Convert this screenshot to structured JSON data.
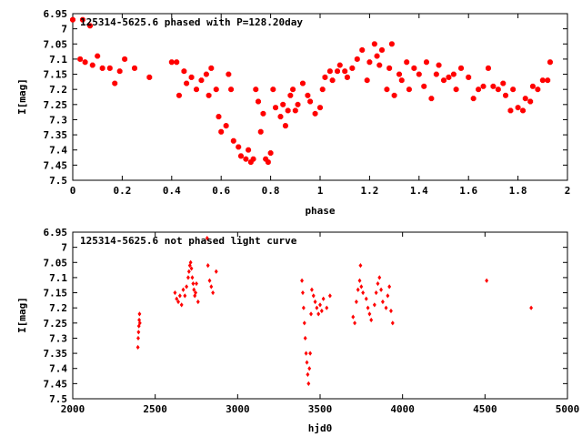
{
  "chart_data": [
    {
      "type": "scatter",
      "title": "125314-5625.6 phased with P=128.20day",
      "xlabel": "phase",
      "ylabel": "I[mag]",
      "xlim": [
        0,
        2
      ],
      "ylim": [
        6.95,
        7.5
      ],
      "y_inverted": true,
      "xticks": [
        0,
        0.2,
        0.4,
        0.6,
        0.8,
        1,
        1.2,
        1.4,
        1.6,
        1.8,
        2
      ],
      "xtick_labels": [
        "0",
        "0.2",
        "0.4",
        "0.6",
        "0.8",
        "1",
        "1.2",
        "1.4",
        "1.6",
        "1.8",
        "2"
      ],
      "yticks": [
        6.95,
        7,
        7.05,
        7.1,
        7.15,
        7.2,
        7.25,
        7.3,
        7.35,
        7.4,
        7.45,
        7.5
      ],
      "ytick_labels": [
        "6.95",
        "7",
        "7.05",
        "7.1",
        "7.15",
        "7.2",
        "7.25",
        "7.3",
        "7.35",
        "7.4",
        "7.45",
        "7.5"
      ],
      "marker_color": "#ff0000",
      "points": [
        [
          0.0,
          6.97
        ],
        [
          0.04,
          6.97
        ],
        [
          0.07,
          6.99
        ],
        [
          0.03,
          7.1
        ],
        [
          0.05,
          7.11
        ],
        [
          0.08,
          7.12
        ],
        [
          0.1,
          7.09
        ],
        [
          0.12,
          7.13
        ],
        [
          0.15,
          7.13
        ],
        [
          0.17,
          7.18
        ],
        [
          0.19,
          7.14
        ],
        [
          0.21,
          7.1
        ],
        [
          0.25,
          7.13
        ],
        [
          0.31,
          7.16
        ],
        [
          0.4,
          7.11
        ],
        [
          0.42,
          7.11
        ],
        [
          0.43,
          7.22
        ],
        [
          0.45,
          7.14
        ],
        [
          0.46,
          7.18
        ],
        [
          0.48,
          7.16
        ],
        [
          0.5,
          7.2
        ],
        [
          0.52,
          7.17
        ],
        [
          0.54,
          7.15
        ],
        [
          0.55,
          7.22
        ],
        [
          0.56,
          7.13
        ],
        [
          0.58,
          7.2
        ],
        [
          0.59,
          7.29
        ],
        [
          0.6,
          7.34
        ],
        [
          0.62,
          7.32
        ],
        [
          0.63,
          7.15
        ],
        [
          0.64,
          7.2
        ],
        [
          0.65,
          7.37
        ],
        [
          0.67,
          7.39
        ],
        [
          0.68,
          7.42
        ],
        [
          0.7,
          7.43
        ],
        [
          0.71,
          7.4
        ],
        [
          0.72,
          7.44
        ],
        [
          0.73,
          7.43
        ],
        [
          0.74,
          7.2
        ],
        [
          0.75,
          7.24
        ],
        [
          0.76,
          7.34
        ],
        [
          0.77,
          7.28
        ],
        [
          0.78,
          7.43
        ],
        [
          0.79,
          7.44
        ],
        [
          0.8,
          7.41
        ],
        [
          0.81,
          7.2
        ],
        [
          0.82,
          7.26
        ],
        [
          0.84,
          7.29
        ],
        [
          0.85,
          7.25
        ],
        [
          0.86,
          7.32
        ],
        [
          0.87,
          7.27
        ],
        [
          0.88,
          7.22
        ],
        [
          0.89,
          7.2
        ],
        [
          0.9,
          7.27
        ],
        [
          0.91,
          7.25
        ],
        [
          0.93,
          7.18
        ],
        [
          0.95,
          7.22
        ],
        [
          0.96,
          7.24
        ],
        [
          0.98,
          7.28
        ],
        [
          1.0,
          7.26
        ],
        [
          1.01,
          7.2
        ],
        [
          1.02,
          7.16
        ],
        [
          1.04,
          7.14
        ],
        [
          1.05,
          7.17
        ],
        [
          1.07,
          7.14
        ],
        [
          1.08,
          7.12
        ],
        [
          1.1,
          7.14
        ],
        [
          1.11,
          7.16
        ],
        [
          1.13,
          7.13
        ],
        [
          1.15,
          7.1
        ],
        [
          1.17,
          7.07
        ],
        [
          1.19,
          7.17
        ],
        [
          1.2,
          7.11
        ],
        [
          1.22,
          7.05
        ],
        [
          1.23,
          7.09
        ],
        [
          1.24,
          7.12
        ],
        [
          1.25,
          7.07
        ],
        [
          1.27,
          7.2
        ],
        [
          1.28,
          7.13
        ],
        [
          1.29,
          7.05
        ],
        [
          1.3,
          7.22
        ],
        [
          1.32,
          7.15
        ],
        [
          1.33,
          7.17
        ],
        [
          1.35,
          7.11
        ],
        [
          1.36,
          7.2
        ],
        [
          1.38,
          7.13
        ],
        [
          1.4,
          7.15
        ],
        [
          1.42,
          7.19
        ],
        [
          1.43,
          7.11
        ],
        [
          1.45,
          7.23
        ],
        [
          1.47,
          7.15
        ],
        [
          1.48,
          7.12
        ],
        [
          1.5,
          7.17
        ],
        [
          1.52,
          7.16
        ],
        [
          1.54,
          7.15
        ],
        [
          1.55,
          7.2
        ],
        [
          1.57,
          7.13
        ],
        [
          1.6,
          7.16
        ],
        [
          1.62,
          7.23
        ],
        [
          1.64,
          7.2
        ],
        [
          1.66,
          7.19
        ],
        [
          1.68,
          7.13
        ],
        [
          1.7,
          7.19
        ],
        [
          1.72,
          7.2
        ],
        [
          1.74,
          7.18
        ],
        [
          1.75,
          7.22
        ],
        [
          1.77,
          7.27
        ],
        [
          1.78,
          7.2
        ],
        [
          1.8,
          7.26
        ],
        [
          1.82,
          7.27
        ],
        [
          1.83,
          7.23
        ],
        [
          1.85,
          7.24
        ],
        [
          1.86,
          7.19
        ],
        [
          1.88,
          7.2
        ],
        [
          1.9,
          7.17
        ],
        [
          1.92,
          7.17
        ],
        [
          1.93,
          7.11
        ]
      ]
    },
    {
      "type": "scatter",
      "title": "125314-5625.6 not phased light curve",
      "xlabel": "hjd0",
      "ylabel": "I[mag]",
      "xlim": [
        2000,
        5000
      ],
      "ylim": [
        6.95,
        7.5
      ],
      "y_inverted": true,
      "xticks": [
        2000,
        2500,
        3000,
        3500,
        4000,
        4500,
        5000
      ],
      "xtick_labels": [
        "2000",
        "2500",
        "3000",
        "3500",
        "4000",
        "4500",
        "5000"
      ],
      "yticks": [
        6.95,
        7,
        7.05,
        7.1,
        7.15,
        7.2,
        7.25,
        7.3,
        7.35,
        7.4,
        7.45,
        7.5
      ],
      "ytick_labels": [
        "6.95",
        "7",
        "7.05",
        "7.1",
        "7.15",
        "7.2",
        "7.25",
        "7.3",
        "7.35",
        "7.4",
        "7.45",
        "7.5"
      ],
      "marker_color": "#ff0000",
      "points": [
        [
          2395,
          7.33
        ],
        [
          2397,
          7.3
        ],
        [
          2399,
          7.28
        ],
        [
          2401,
          7.26
        ],
        [
          2403,
          7.24
        ],
        [
          2405,
          7.22
        ],
        [
          2407,
          7.25
        ],
        [
          2620,
          7.15
        ],
        [
          2630,
          7.17
        ],
        [
          2640,
          7.18
        ],
        [
          2650,
          7.16
        ],
        [
          2660,
          7.19
        ],
        [
          2670,
          7.14
        ],
        [
          2680,
          7.16
        ],
        [
          2690,
          7.13
        ],
        [
          2700,
          7.1
        ],
        [
          2705,
          7.08
        ],
        [
          2710,
          7.06
        ],
        [
          2715,
          7.05
        ],
        [
          2720,
          7.07
        ],
        [
          2725,
          7.1
        ],
        [
          2730,
          7.12
        ],
        [
          2735,
          7.14
        ],
        [
          2740,
          7.16
        ],
        [
          2745,
          7.15
        ],
        [
          2750,
          7.12
        ],
        [
          2760,
          7.18
        ],
        [
          2815,
          6.97
        ],
        [
          2820,
          7.06
        ],
        [
          2830,
          7.11
        ],
        [
          2840,
          7.13
        ],
        [
          2850,
          7.15
        ],
        [
          2870,
          7.08
        ],
        [
          3390,
          7.11
        ],
        [
          3395,
          7.15
        ],
        [
          3400,
          7.2
        ],
        [
          3405,
          7.25
        ],
        [
          3410,
          7.3
        ],
        [
          3415,
          7.35
        ],
        [
          3420,
          7.38
        ],
        [
          3425,
          7.42
        ],
        [
          3430,
          7.45
        ],
        [
          3435,
          7.4
        ],
        [
          3440,
          7.35
        ],
        [
          3445,
          7.22
        ],
        [
          3450,
          7.14
        ],
        [
          3460,
          7.16
        ],
        [
          3470,
          7.18
        ],
        [
          3480,
          7.2
        ],
        [
          3490,
          7.22
        ],
        [
          3500,
          7.19
        ],
        [
          3510,
          7.21
        ],
        [
          3520,
          7.17
        ],
        [
          3540,
          7.2
        ],
        [
          3560,
          7.16
        ],
        [
          3700,
          7.23
        ],
        [
          3710,
          7.25
        ],
        [
          3720,
          7.18
        ],
        [
          3730,
          7.14
        ],
        [
          3740,
          7.11
        ],
        [
          3745,
          7.06
        ],
        [
          3750,
          7.13
        ],
        [
          3760,
          7.15
        ],
        [
          3780,
          7.17
        ],
        [
          3790,
          7.2
        ],
        [
          3800,
          7.22
        ],
        [
          3810,
          7.24
        ],
        [
          3830,
          7.19
        ],
        [
          3840,
          7.15
        ],
        [
          3850,
          7.12
        ],
        [
          3860,
          7.1
        ],
        [
          3870,
          7.14
        ],
        [
          3880,
          7.18
        ],
        [
          3900,
          7.2
        ],
        [
          3910,
          7.16
        ],
        [
          3920,
          7.13
        ],
        [
          3930,
          7.21
        ],
        [
          3940,
          7.25
        ],
        [
          4510,
          7.11
        ],
        [
          4780,
          7.2
        ]
      ]
    }
  ]
}
